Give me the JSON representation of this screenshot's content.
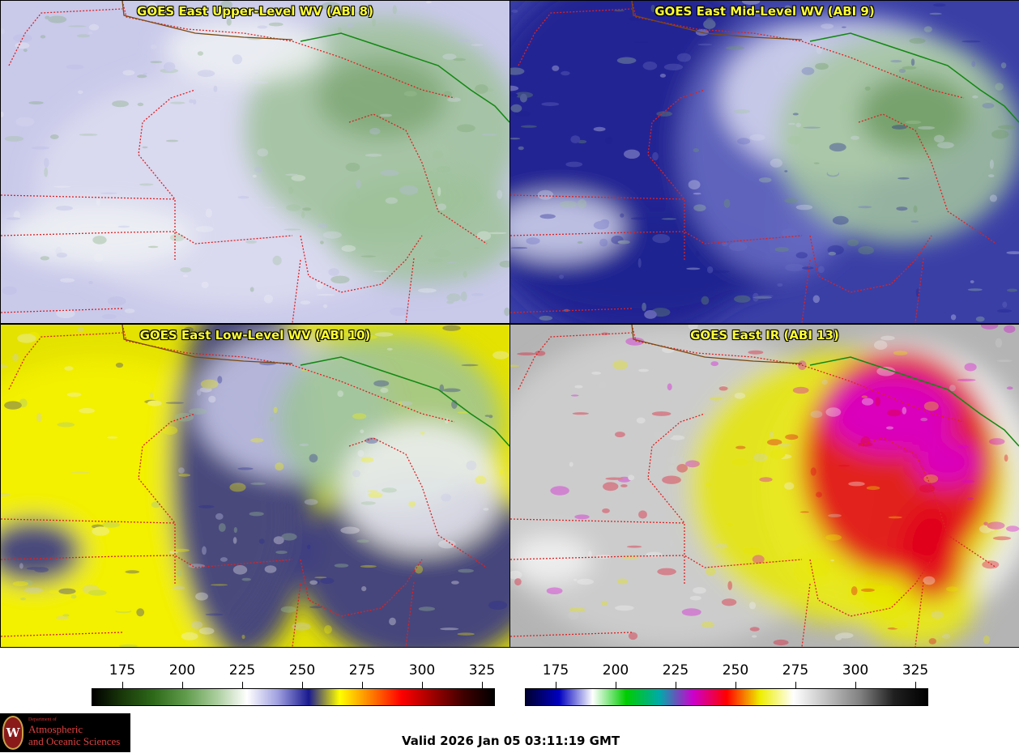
{
  "panels": [
    {
      "title": "GOES East Upper-Level WV (ABI 8)",
      "base": "#c9c9ea",
      "palette": [
        "#b9bbe4",
        "#dcdcf0",
        "#f0f2f5",
        "#9fc29a",
        "#7fa775"
      ]
    },
    {
      "title": "GOES East Mid-Level WV (ABI 9)",
      "base": "#3a3fa6",
      "palette": [
        "#1e2090",
        "#6b6fc4",
        "#d8daf0",
        "#a5c79f",
        "#6f9b63"
      ]
    },
    {
      "title": "GOES East Low-Level WV (ABI 10)",
      "base": "#e4e200",
      "palette": [
        "#f6f200",
        "#2a2c92",
        "#c8c9ea",
        "#9ec497",
        "#f0f0f5"
      ]
    },
    {
      "title": "GOES East IR (ABI 13)",
      "base": "#b4b4b4",
      "palette": [
        "#d0d0d0",
        "#e8e800",
        "#e0001e",
        "#d800d8",
        "#f4f4f4"
      ]
    }
  ],
  "colorbars": [
    {
      "ticks": [
        "175",
        "200",
        "225",
        "250",
        "275",
        "300",
        "325"
      ],
      "colors": [
        "#000000",
        "#1a3a0a",
        "#2e6a1a",
        "#5e9a4a",
        "#a8cc9a",
        "#ffffff",
        "#a0a0e0",
        "#1a1a90",
        "#ffff00",
        "#ff8000",
        "#ff0000",
        "#a00000",
        "#400000",
        "#000000"
      ]
    },
    {
      "ticks": [
        "175",
        "200",
        "225",
        "250",
        "275",
        "300",
        "325"
      ],
      "colors": [
        "#000030",
        "#0000c0",
        "#ffffff",
        "#00cc00",
        "#00aaaa",
        "#cc00cc",
        "#ff0000",
        "#eeee00",
        "#ffffff",
        "#c0c0c0",
        "#808080",
        "#202020",
        "#000000"
      ]
    }
  ],
  "logo": {
    "line1": "Department of",
    "line2": "Atmospheric",
    "line3": "and Oceanic Sciences",
    "seal": "W"
  },
  "valid_text": "Valid 2026 Jan 05 03:11:19 GMT"
}
